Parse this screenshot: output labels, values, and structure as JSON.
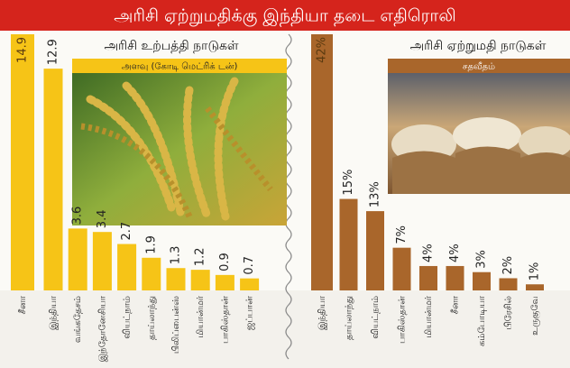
{
  "title": "அரிசி ஏற்றுமதிக்கு இந்தியா தடை எதிரொலி",
  "chart_data": [
    {
      "type": "bar",
      "title": "அரிசி உற்பத்தி நாடுகள்",
      "subtitle": "அளவு (கோடி மெட்ரிக் டன்)",
      "categories": [
        "சீனா",
        "இந்தியா",
        "வங்கதேசம்",
        "இந்தோனேசியா",
        "வியட்நாம்",
        "தாய்லாந்து",
        "பிலிப்பைன்ஸ்",
        "மியான்மர்",
        "பாகிஸ்தான்",
        "ஜப்பான்"
      ],
      "values": [
        14.9,
        12.9,
        3.6,
        3.4,
        2.7,
        1.9,
        1.3,
        1.2,
        0.9,
        0.7
      ],
      "color": "#f6c417"
    },
    {
      "type": "bar",
      "title": "அரிசி ஏற்றுமதி நாடுகள்",
      "subtitle": "சதவீதம்",
      "categories": [
        "இந்தியா",
        "தாய்லாந்து",
        "வியட்நாம்",
        "பாகிஸ்தான்",
        "மியான்மர்",
        "சீனா",
        "கம்போடியா",
        "பிரேசில்",
        "உருகுவே"
      ],
      "values": [
        42,
        15,
        13,
        7,
        4,
        4,
        3,
        2,
        1
      ],
      "value_labels": [
        "42%",
        "15%",
        "13%",
        "7%",
        "4%",
        "4%",
        "3%",
        "2%",
        "1%"
      ],
      "color": "#a9662b"
    }
  ]
}
